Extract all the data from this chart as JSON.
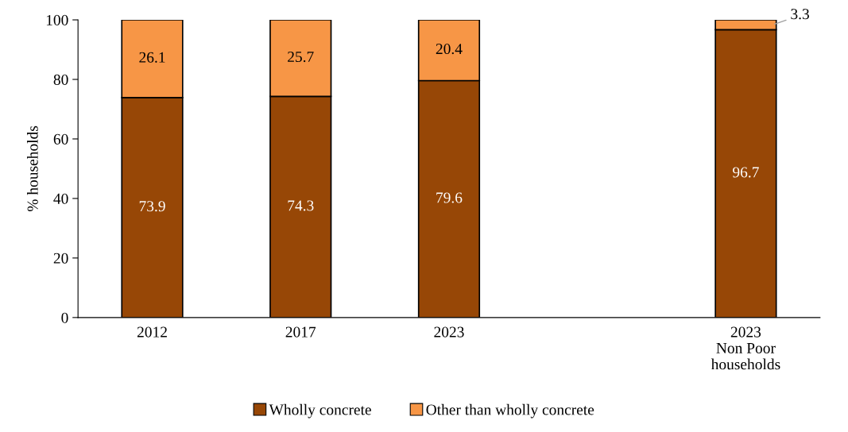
{
  "chart_data": {
    "type": "bar",
    "stacked": true,
    "ylabel": "% households",
    "categories": [
      "2012",
      "2017",
      "2023",
      null,
      "2023\nNon Poor\nhouseholds"
    ],
    "series": [
      {
        "name": "Wholly concrete",
        "color": "#974706",
        "values": [
          73.9,
          74.3,
          79.6,
          null,
          96.7
        ]
      },
      {
        "name": "Other than wholly concrete",
        "color": "#f79646",
        "values": [
          26.1,
          25.7,
          20.4,
          null,
          3.3
        ]
      }
    ],
    "ylim": [
      0,
      100
    ],
    "yticks": [
      0,
      20,
      40,
      60,
      80,
      100
    ],
    "grid": false,
    "legend": "bottom",
    "data_labels": true
  }
}
